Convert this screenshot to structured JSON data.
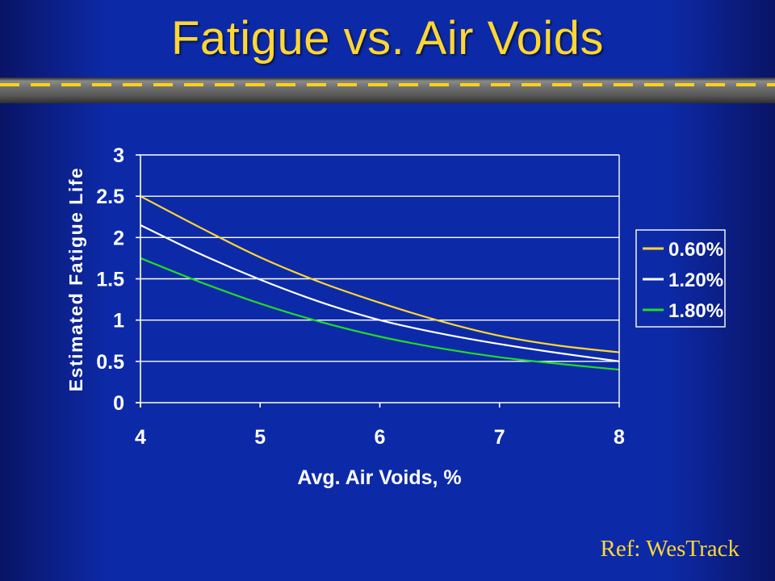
{
  "slide": {
    "title": "Fatigue vs. Air Voids",
    "reference": "Ref: WesTrack"
  },
  "colors": {
    "title": "#ffd633",
    "background": "#0c2aa8",
    "axis": "#ffffff"
  },
  "chart_data": {
    "type": "line",
    "title": "",
    "xlabel": "Avg. Air Voids, %",
    "ylabel": "Estimated Fatigue Life",
    "xlim": [
      4,
      8
    ],
    "ylim": [
      0,
      3
    ],
    "xticks": [
      4,
      5,
      6,
      7,
      8
    ],
    "yticks": [
      0,
      0.5,
      1,
      1.5,
      2,
      2.5,
      3
    ],
    "ytick_labels": [
      "0",
      "0.5",
      "1",
      "1.5",
      "2",
      "2.5",
      "3"
    ],
    "grid": true,
    "legend_position": "right",
    "x": [
      4,
      4.5,
      5,
      5.5,
      6,
      6.5,
      7,
      7.5,
      8
    ],
    "series": [
      {
        "name": "0.60%",
        "color": "#ffd633",
        "values": [
          2.5,
          2.12,
          1.76,
          1.46,
          1.21,
          0.99,
          0.81,
          0.69,
          0.61
        ]
      },
      {
        "name": "1.20%",
        "color": "#ffffff",
        "values": [
          2.15,
          1.8,
          1.49,
          1.22,
          1.0,
          0.84,
          0.71,
          0.6,
          0.5
        ]
      },
      {
        "name": "1.80%",
        "color": "#22dd22",
        "values": [
          1.75,
          1.46,
          1.2,
          0.98,
          0.8,
          0.66,
          0.55,
          0.47,
          0.4
        ]
      }
    ]
  }
}
